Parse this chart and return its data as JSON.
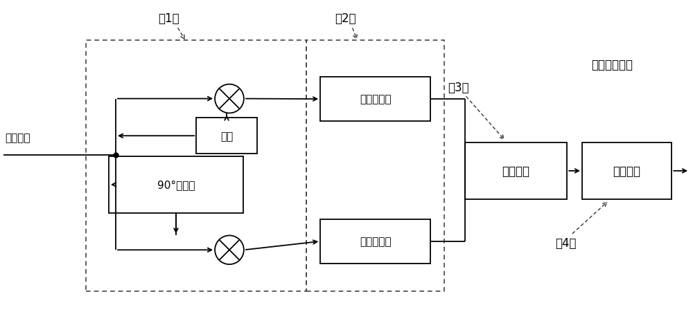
{
  "bg_color": "#ffffff",
  "line_color": "#000000",
  "fig_width": 10.0,
  "fig_height": 4.81,
  "label_xinput": "信号输入",
  "label_bozhen": "本振",
  "label_phase": "90°相移器",
  "label_lpf1": "低通滤波器",
  "label_lpf2": "低通滤波器",
  "label_pulse": "脉冲压缩",
  "label_target": "目标检测",
  "label_output": "检测信息输出",
  "label_1": "（1）",
  "label_2": "（2）",
  "label_3": "（3）",
  "label_4": "（4）"
}
